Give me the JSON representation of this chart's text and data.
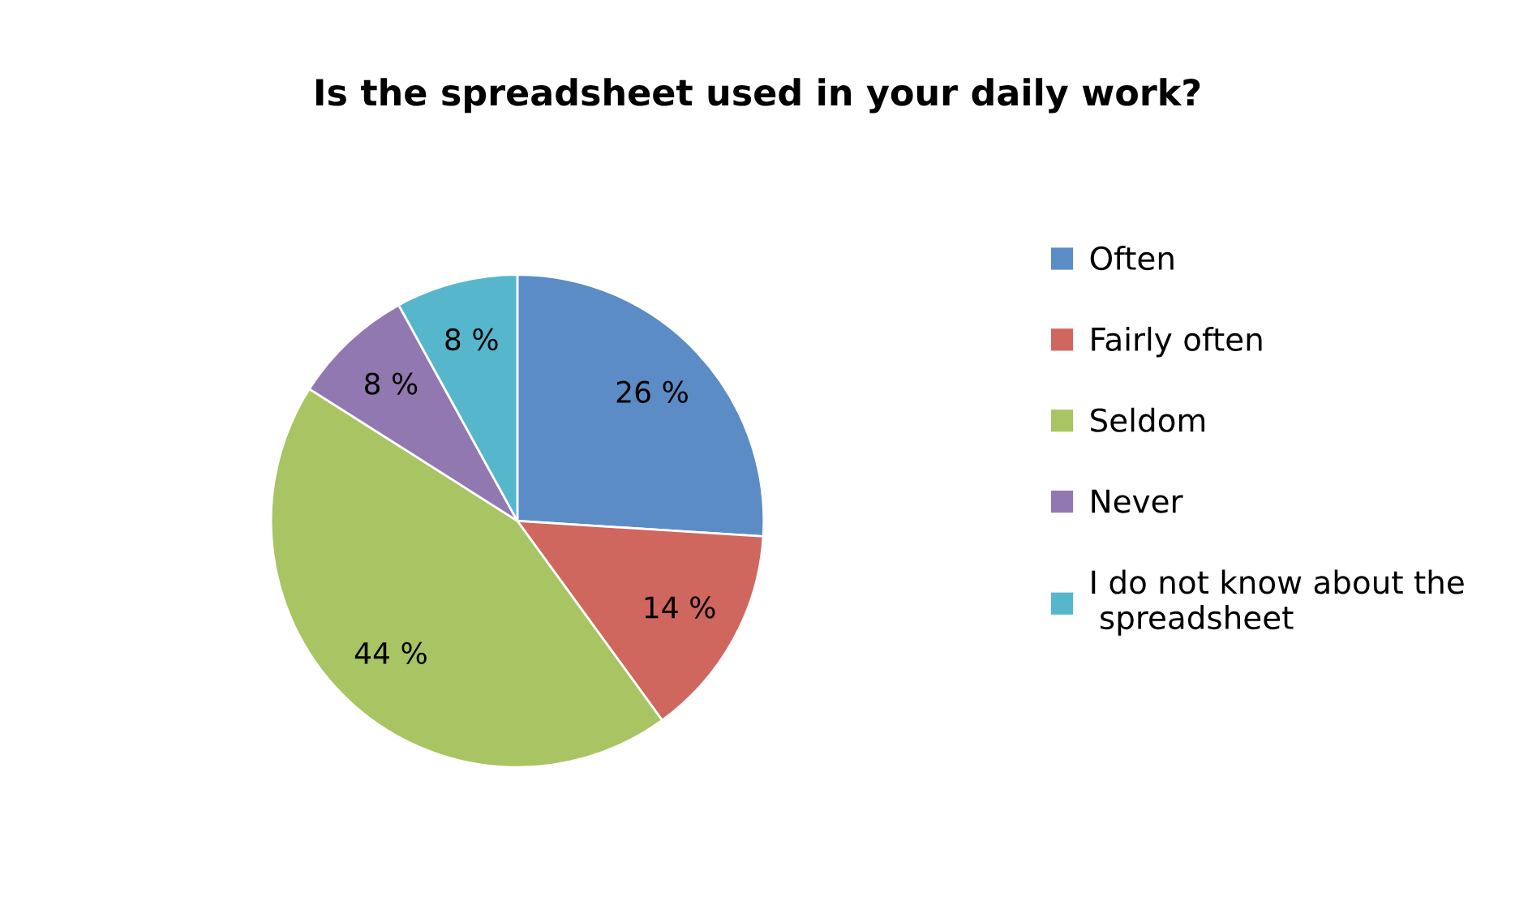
{
  "chart_data": {
    "type": "pie",
    "title": "Is the spreadsheet used in your daily work?",
    "categories": [
      "Often",
      "Fairly often",
      "Seldom",
      "Never",
      "I do not know about the spreadsheet"
    ],
    "values": [
      26,
      14,
      44,
      8,
      8
    ],
    "value_labels": [
      "26 %",
      "14 %",
      "44 %",
      "8 %",
      "8 %"
    ],
    "colors": [
      "#5b8cc6",
      "#d0675e",
      "#a9c463",
      "#9278b0",
      "#56b6cc"
    ],
    "legend": "right"
  }
}
